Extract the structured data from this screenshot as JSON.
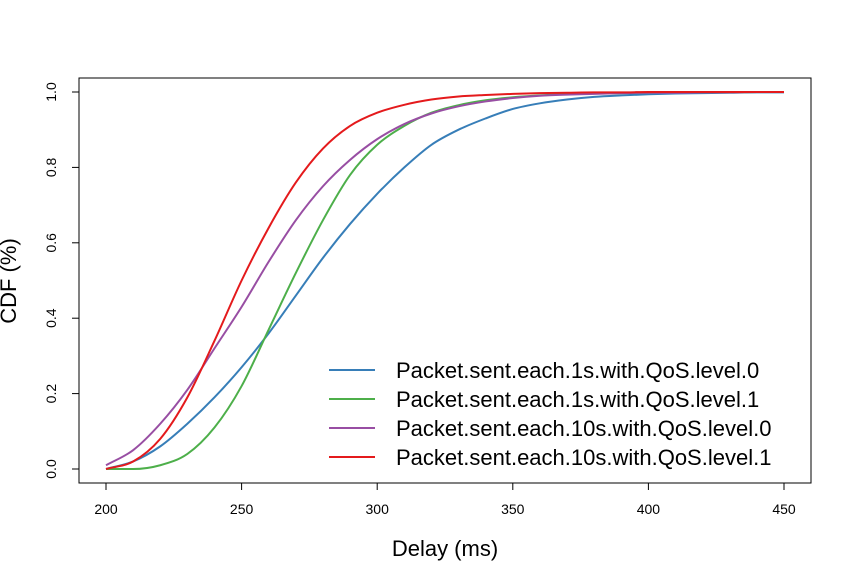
{
  "chart_data": {
    "type": "line",
    "title": "",
    "xlabel": "Delay (ms)",
    "ylabel": "CDF (%)",
    "xlim": [
      200,
      450
    ],
    "ylim": [
      0,
      1
    ],
    "xticks": [
      200,
      250,
      300,
      350,
      400,
      450
    ],
    "yticks": [
      0.0,
      0.2,
      0.4,
      0.6,
      0.8,
      1.0
    ],
    "ytick_labels": [
      "0.0",
      "0.2",
      "0.4",
      "0.6",
      "0.8",
      "1.0"
    ],
    "grid": false,
    "legend_position": "bottom-right",
    "x": [
      200,
      210,
      220,
      230,
      240,
      250,
      260,
      270,
      280,
      290,
      300,
      310,
      320,
      330,
      340,
      350,
      360,
      370,
      380,
      390,
      400,
      410,
      420,
      430,
      440,
      450
    ],
    "series": [
      {
        "name": "Packet.sent.each.1s.with.QoS.level.0",
        "color": "#377EB8",
        "values": [
          0.0,
          0.02,
          0.06,
          0.12,
          0.19,
          0.27,
          0.36,
          0.46,
          0.56,
          0.65,
          0.73,
          0.8,
          0.86,
          0.9,
          0.93,
          0.955,
          0.97,
          0.98,
          0.987,
          0.991,
          0.994,
          0.996,
          0.997,
          0.998,
          0.999,
          0.999
        ]
      },
      {
        "name": "Packet.sent.each.1s.with.QoS.level.1",
        "color": "#4DAF4A",
        "values": [
          0.0,
          0.0,
          0.01,
          0.04,
          0.11,
          0.22,
          0.37,
          0.52,
          0.66,
          0.78,
          0.86,
          0.91,
          0.945,
          0.965,
          0.978,
          0.986,
          0.991,
          0.994,
          0.996,
          0.997,
          0.998,
          0.999,
          0.999,
          0.999,
          1.0,
          1.0
        ]
      },
      {
        "name": "Packet.sent.each.10s.with.QoS.level.0",
        "color": "#984EA3",
        "values": [
          0.01,
          0.05,
          0.12,
          0.21,
          0.32,
          0.43,
          0.55,
          0.66,
          0.75,
          0.82,
          0.875,
          0.915,
          0.943,
          0.962,
          0.975,
          0.984,
          0.99,
          0.993,
          0.995,
          0.997,
          0.998,
          0.998,
          0.999,
          0.999,
          1.0,
          1.0
        ]
      },
      {
        "name": "Packet.sent.each.10s.with.QoS.level.1",
        "color": "#E41A1C",
        "values": [
          0.0,
          0.02,
          0.08,
          0.19,
          0.34,
          0.5,
          0.64,
          0.76,
          0.85,
          0.91,
          0.945,
          0.966,
          0.98,
          0.988,
          0.992,
          0.995,
          0.997,
          0.998,
          0.999,
          0.999,
          1.0,
          1.0,
          1.0,
          1.0,
          1.0,
          1.0
        ]
      }
    ]
  }
}
